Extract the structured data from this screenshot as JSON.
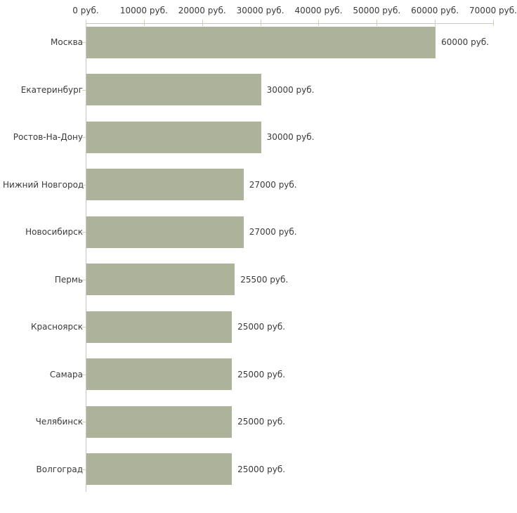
{
  "chart_data": {
    "type": "bar",
    "orientation": "horizontal",
    "title": "",
    "categories": [
      "Москва",
      "Екатеринбург",
      "Ростов-На-Дону",
      "Нижний Новгород",
      "Новосибирск",
      "Пермь",
      "Красноярск",
      "Самара",
      "Челябинск",
      "Волгоград"
    ],
    "values": [
      60000,
      30000,
      30000,
      27000,
      27000,
      25500,
      25000,
      25000,
      25000,
      25000
    ],
    "value_labels": [
      "60000 руб.",
      "30000 руб.",
      "30000 руб.",
      "27000 руб.",
      "27000 руб.",
      "25500 руб.",
      "25000 руб.",
      "25000 руб.",
      "25000 руб.",
      "25000 руб."
    ],
    "x_axis": {
      "position": "top",
      "min": 0,
      "max": 70000,
      "tick_values": [
        0,
        10000,
        20000,
        30000,
        40000,
        50000,
        60000,
        70000
      ],
      "tick_labels": [
        "0 руб.",
        "10000 руб.",
        "20000 руб.",
        "30000 руб.",
        "40000 руб.",
        "50000 руб.",
        "60000 руб.",
        "70000 руб."
      ]
    },
    "grid": false,
    "legend": false,
    "colors": {
      "bar_fill": "#adb39a",
      "axis_line": "#c6c4c4",
      "tick_mark": "#cfd1ae",
      "text": "#3a3a3a",
      "background": "#ffffff"
    }
  }
}
